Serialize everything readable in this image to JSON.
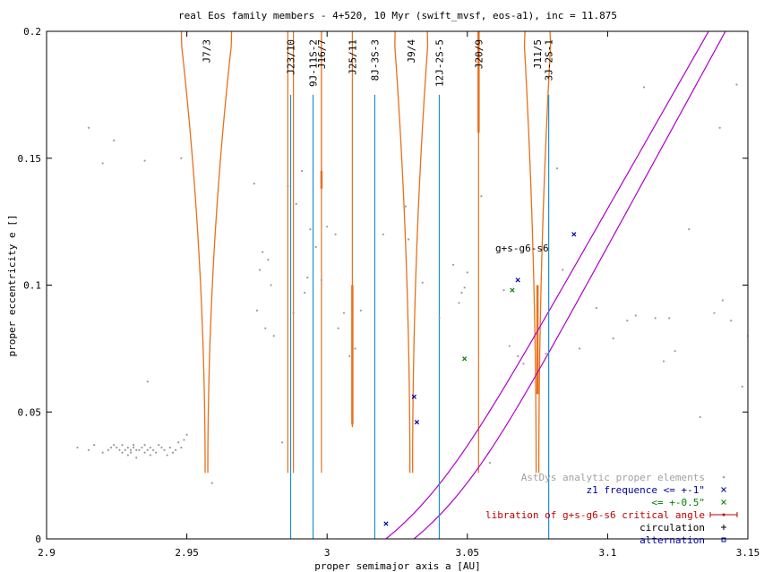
{
  "chart_data": {
    "type": "scatter",
    "title": "real Eos family members - 4+520, 10 Myr (swift_mvsf, eos-a1), inc = 11.875",
    "xlabel": "proper semimajor axis a [AU]",
    "ylabel": "proper eccentricity e []",
    "xlim": [
      2.9,
      3.15
    ],
    "ylim": [
      0,
      0.2
    ],
    "xticks": [
      2.9,
      2.95,
      3.0,
      3.05,
      3.1,
      3.15
    ],
    "xtick_labels": [
      "2.9",
      "2.95",
      "3",
      "3.05",
      "3.1",
      "3.15"
    ],
    "yticks": [
      0,
      0.05,
      0.1,
      0.15,
      0.2
    ],
    "ytick_labels": [
      "0",
      "0.05",
      "0.1",
      "0.15",
      "0.2"
    ],
    "grid": false,
    "legend_position": "bottom-right",
    "legend": [
      {
        "label": "AstDys analytic proper elements",
        "color": "#a0a0a0",
        "marker": "dot"
      },
      {
        "label": "z1 frequence <= +-1\"",
        "color": "#0000a0",
        "marker": "x"
      },
      {
        "label": "<= +-0.5\"",
        "color": "#008000",
        "marker": "x"
      },
      {
        "label": "libration of g+s-g6-s6 critical angle",
        "color": "#c00000",
        "marker": "errorbar"
      },
      {
        "label": "circulation",
        "color": "#000000",
        "marker": "plus"
      },
      {
        "label": "alternation",
        "color": "#0000a0",
        "marker": "square"
      }
    ],
    "resonance_lines": [
      {
        "label": "J7/3",
        "a": 2.957
      },
      {
        "label": "J23/10",
        "a": 2.987
      },
      {
        "label": "9J-11S-2",
        "a": 2.995
      },
      {
        "label": "J16/7",
        "a": 2.998
      },
      {
        "label": "J25/11",
        "a": 3.009
      },
      {
        "label": "8J-3S-3",
        "a": 3.017
      },
      {
        "label": "J9/4",
        "a": 3.03
      },
      {
        "label": "12J-2S-5",
        "a": 3.04
      },
      {
        "label": "J20/9",
        "a": 3.054
      },
      {
        "label": "J11/5",
        "a": 3.075
      },
      {
        "label": "3J-2S-1",
        "a": 3.079
      }
    ],
    "secular_label": "g+s-g6-s6",
    "asteroids": {
      "x": [
        2.911,
        2.915,
        2.917,
        2.92,
        2.922,
        2.923,
        2.924,
        2.925,
        2.926,
        2.927,
        2.927,
        2.928,
        2.929,
        2.929,
        2.93,
        2.93,
        2.931,
        2.931,
        2.932,
        2.932,
        2.933,
        2.934,
        2.935,
        2.935,
        2.936,
        2.937,
        2.937,
        2.938,
        2.939,
        2.94,
        2.941,
        2.942,
        2.943,
        2.944,
        2.945,
        2.946,
        2.947,
        2.948,
        2.949,
        2.95,
        2.915,
        2.92,
        2.924,
        2.935,
        2.936,
        2.948,
        2.959,
        2.974,
        2.975,
        2.976,
        2.977,
        2.978,
        2.979,
        2.98,
        2.981,
        2.984,
        2.986,
        2.988,
        2.989,
        2.991,
        2.992,
        2.993,
        2.994,
        2.996,
        2.998,
        3.0,
        3.003,
        3.004,
        3.006,
        3.008,
        3.01,
        3.012,
        3.02,
        3.028,
        3.029,
        3.034,
        3.04,
        3.045,
        3.047,
        3.048,
        3.049,
        3.05,
        3.055,
        3.058,
        3.063,
        3.065,
        3.068,
        3.07,
        3.078,
        3.082,
        3.084,
        3.09,
        3.096,
        3.102,
        3.107,
        3.11,
        3.113,
        3.117,
        3.12,
        3.122,
        3.124,
        3.129,
        3.133,
        3.138,
        3.14,
        3.141,
        3.144,
        3.146,
        3.148,
        3.15
      ],
      "y": [
        0.036,
        0.035,
        0.037,
        0.034,
        0.035,
        0.036,
        0.037,
        0.036,
        0.035,
        0.034,
        0.037,
        0.035,
        0.033,
        0.036,
        0.035,
        0.034,
        0.036,
        0.037,
        0.035,
        0.032,
        0.035,
        0.036,
        0.037,
        0.034,
        0.035,
        0.033,
        0.036,
        0.035,
        0.034,
        0.037,
        0.036,
        0.035,
        0.033,
        0.036,
        0.034,
        0.035,
        0.038,
        0.036,
        0.039,
        0.041,
        0.162,
        0.148,
        0.157,
        0.149,
        0.062,
        0.15,
        0.022,
        0.14,
        0.09,
        0.106,
        0.113,
        0.083,
        0.11,
        0.1,
        0.08,
        0.038,
        0.139,
        0.089,
        0.132,
        0.145,
        0.097,
        0.103,
        0.122,
        0.115,
        0.102,
        0.123,
        0.12,
        0.083,
        0.089,
        0.072,
        0.075,
        0.09,
        0.12,
        0.131,
        0.118,
        0.101,
        0.087,
        0.108,
        0.093,
        0.097,
        0.099,
        0.105,
        0.135,
        0.03,
        0.098,
        0.076,
        0.072,
        0.069,
        0.073,
        0.146,
        0.106,
        0.075,
        0.091,
        0.079,
        0.086,
        0.088,
        0.178,
        0.087,
        0.07,
        0.087,
        0.074,
        0.122,
        0.048,
        0.089,
        0.162,
        0.094,
        0.086,
        0.179,
        0.06,
        0.08
      ]
    },
    "z1_frequence_1": {
      "x": [
        3.021,
        3.031,
        3.032,
        3.068,
        3.088
      ],
      "y": [
        0.006,
        0.056,
        0.046,
        0.102,
        0.12
      ]
    },
    "z1_frequence_05": {
      "x": [
        3.049,
        3.066
      ],
      "y": [
        0.071,
        0.098
      ]
    }
  }
}
